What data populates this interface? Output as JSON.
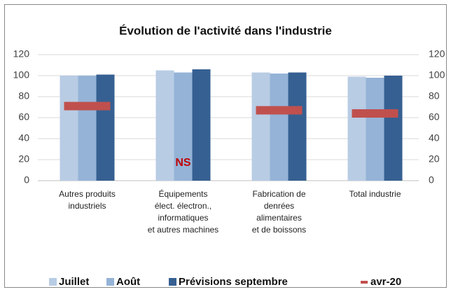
{
  "chart_data": {
    "type": "bar",
    "title": "Évolution de l'activité dans l'industrie",
    "categories": [
      [
        "Autres produits",
        "industriels"
      ],
      [
        "Équipements",
        "élect. électron.,",
        "informatiques",
        "et autres machines"
      ],
      [
        "Fabrication de",
        "denrées",
        "alimentaires",
        "et de boissons"
      ],
      [
        "Total industrie"
      ]
    ],
    "series": [
      {
        "name": "Juillet",
        "color": "#b8cce4",
        "values": [
          100,
          105,
          103,
          99
        ]
      },
      {
        "name": "Août",
        "color": "#95b3d7",
        "values": [
          100,
          103,
          102,
          98
        ]
      },
      {
        "name": "Prévisions septembre",
        "color": "#366092",
        "values": [
          101,
          106,
          103,
          100
        ]
      },
      {
        "name": "avr-20",
        "color": "#c0504d",
        "style": "dash",
        "values": [
          71,
          null,
          67,
          64
        ]
      }
    ],
    "annotations": [
      {
        "text": "NS",
        "color": "#c00000"
      }
    ],
    "ylim": [
      0,
      120
    ],
    "yticks": [
      0,
      20,
      40,
      60,
      80,
      100,
      120
    ],
    "y2lim": [
      0,
      120
    ],
    "y2ticks": [
      0,
      20,
      40,
      60,
      80,
      100,
      120
    ],
    "grid": true,
    "legend": "bottom"
  }
}
